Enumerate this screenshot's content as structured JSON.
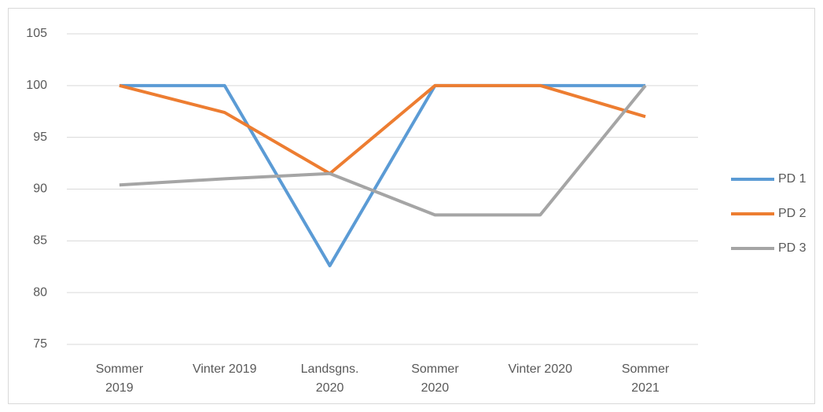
{
  "chart_data": {
    "type": "line",
    "categories": [
      "Sommer 2019",
      "Vinter 2019",
      "Landsgns. 2020",
      "Sommer 2020",
      "Vinter 2020",
      "Sommer 2021"
    ],
    "series": [
      {
        "name": "PD 1",
        "color": "#5b9bd5",
        "values": [
          100,
          100,
          82.6,
          100,
          100,
          100
        ]
      },
      {
        "name": "PD 2",
        "color": "#ed7d31",
        "values": [
          100,
          97.4,
          91.5,
          100,
          100,
          97
        ]
      },
      {
        "name": "PD 3",
        "color": "#a5a5a5",
        "values": [
          90.4,
          91,
          91.5,
          87.5,
          87.5,
          100
        ]
      }
    ],
    "ylim": [
      75,
      105
    ],
    "yticks": [
      75,
      80,
      85,
      90,
      95,
      100,
      105
    ],
    "grid": true,
    "legend": "right"
  }
}
